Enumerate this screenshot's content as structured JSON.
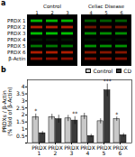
{
  "chart_data": [
    {
      "type": "blot",
      "title": "a",
      "categories": [
        "PRDX 1",
        "PRDX 2",
        "PRDX 3",
        "PRDX 4",
        "PRDX 5",
        "PRDX 6",
        "β-Actin"
      ],
      "colors": [
        "#00cc00",
        "#cc2200",
        "#00cc00",
        "#005500",
        "#00aa00",
        "#cc2200",
        "#aa1100"
      ],
      "series": [
        {
          "name": "Control",
          "lanes": [
            "1",
            "2",
            "3"
          ],
          "values": [
            0.9,
            0.85,
            0.95,
            0.25,
            0.7,
            0.85,
            0.8
          ]
        },
        {
          "name": "Celiac Disease",
          "lanes": [
            "4",
            "5",
            "6"
          ],
          "values": [
            0.45,
            0.55,
            0.7,
            0.2,
            0.85,
            0.65,
            0.75
          ]
        }
      ]
    },
    {
      "type": "bar",
      "title": "b",
      "categories": [
        "PRDX\n1",
        "PRDX\n2",
        "PRDX\n3",
        "PRDX\n4",
        "PRDX\n5",
        "PRDX\n6"
      ],
      "series": [
        {
          "name": "Control",
          "color": "#c8c8c8",
          "values": [
            1.85,
            1.85,
            1.75,
            1.9,
            1.55,
            1.7
          ],
          "errors": [
            0.22,
            0.2,
            0.22,
            0.22,
            0.18,
            0.15
          ]
        },
        {
          "name": "CD",
          "color": "#3a3a3a",
          "values": [
            0.7,
            1.7,
            1.6,
            0.5,
            3.75,
            0.55
          ],
          "errors": [
            0.12,
            0.28,
            0.28,
            0.12,
            0.45,
            0.13
          ]
        }
      ],
      "ylabel": "PRDXs / β-Actin\n(% fold of β-Actin)",
      "ylim": [
        0,
        4.5
      ],
      "yticks": [
        {
          "value": 0,
          "label": null
        },
        0.5,
        1,
        1.5,
        2,
        2.5,
        3,
        3.5,
        4
      ],
      "legend": "upper right",
      "annotations": [
        {
          "category": "PRDX\n1",
          "series": "Control",
          "text": "*"
        },
        {
          "category": "PRDX\n3",
          "series": "CD",
          "text": "**"
        },
        {
          "category": "PRDX\n5",
          "series": "CD",
          "text": "***"
        },
        {
          "category": "PRDX\n6",
          "series": "Control",
          "text": "*"
        }
      ]
    }
  ]
}
